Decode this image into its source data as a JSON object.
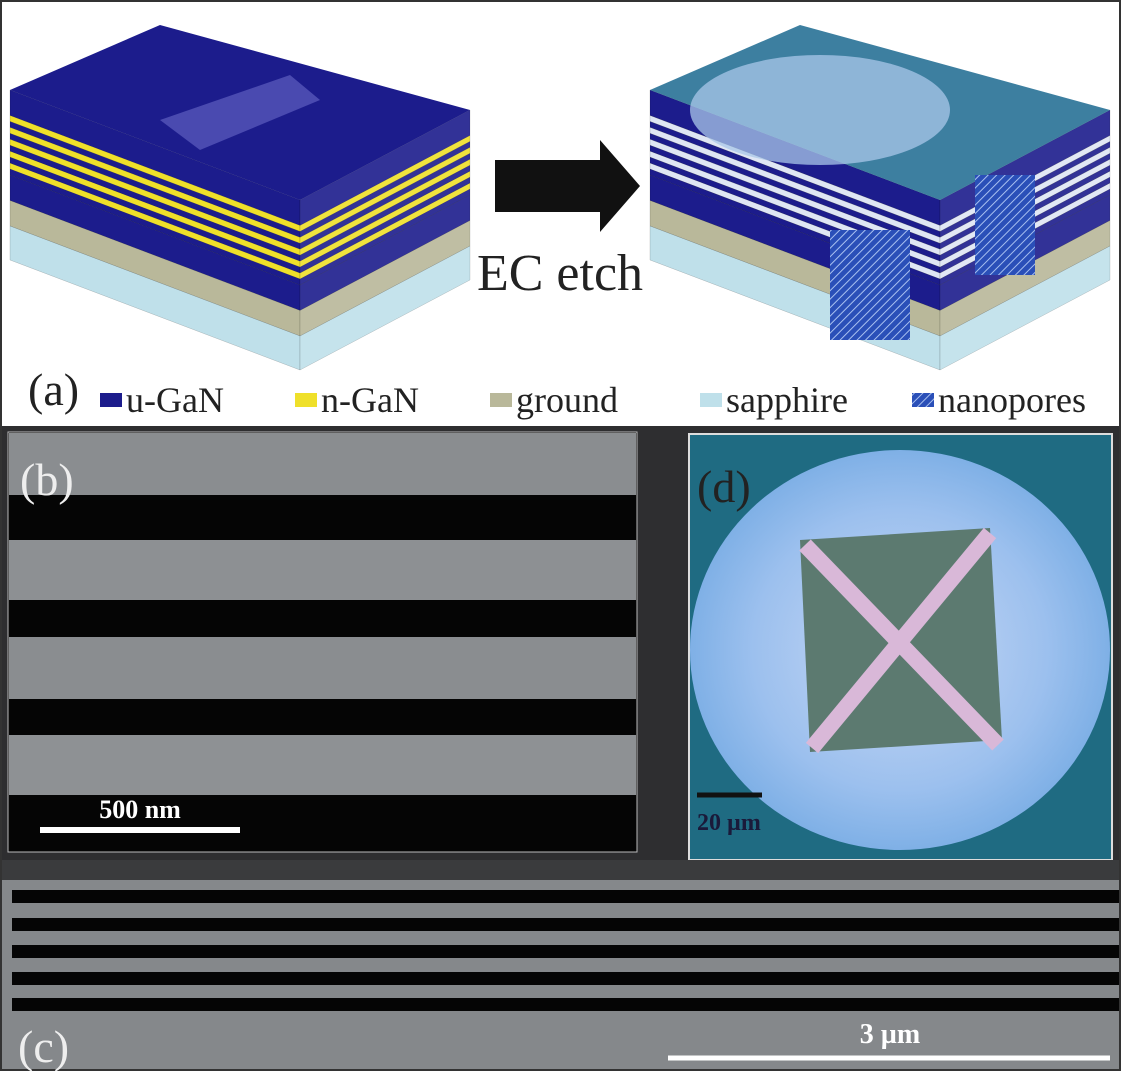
{
  "panel_a": {
    "label": "(a)",
    "arrow_label": "EC etch",
    "legend": [
      "u-GaN",
      "n-GaN",
      "ground",
      "sapphire",
      "nanopores"
    ]
  },
  "panel_b": {
    "label": "(b)",
    "scale_bar": "500 nm"
  },
  "panel_c": {
    "label": "(c)",
    "scale_bar": "3 µm"
  },
  "panel_d": {
    "label": "(d)",
    "scale_bar": "20 µm"
  }
}
